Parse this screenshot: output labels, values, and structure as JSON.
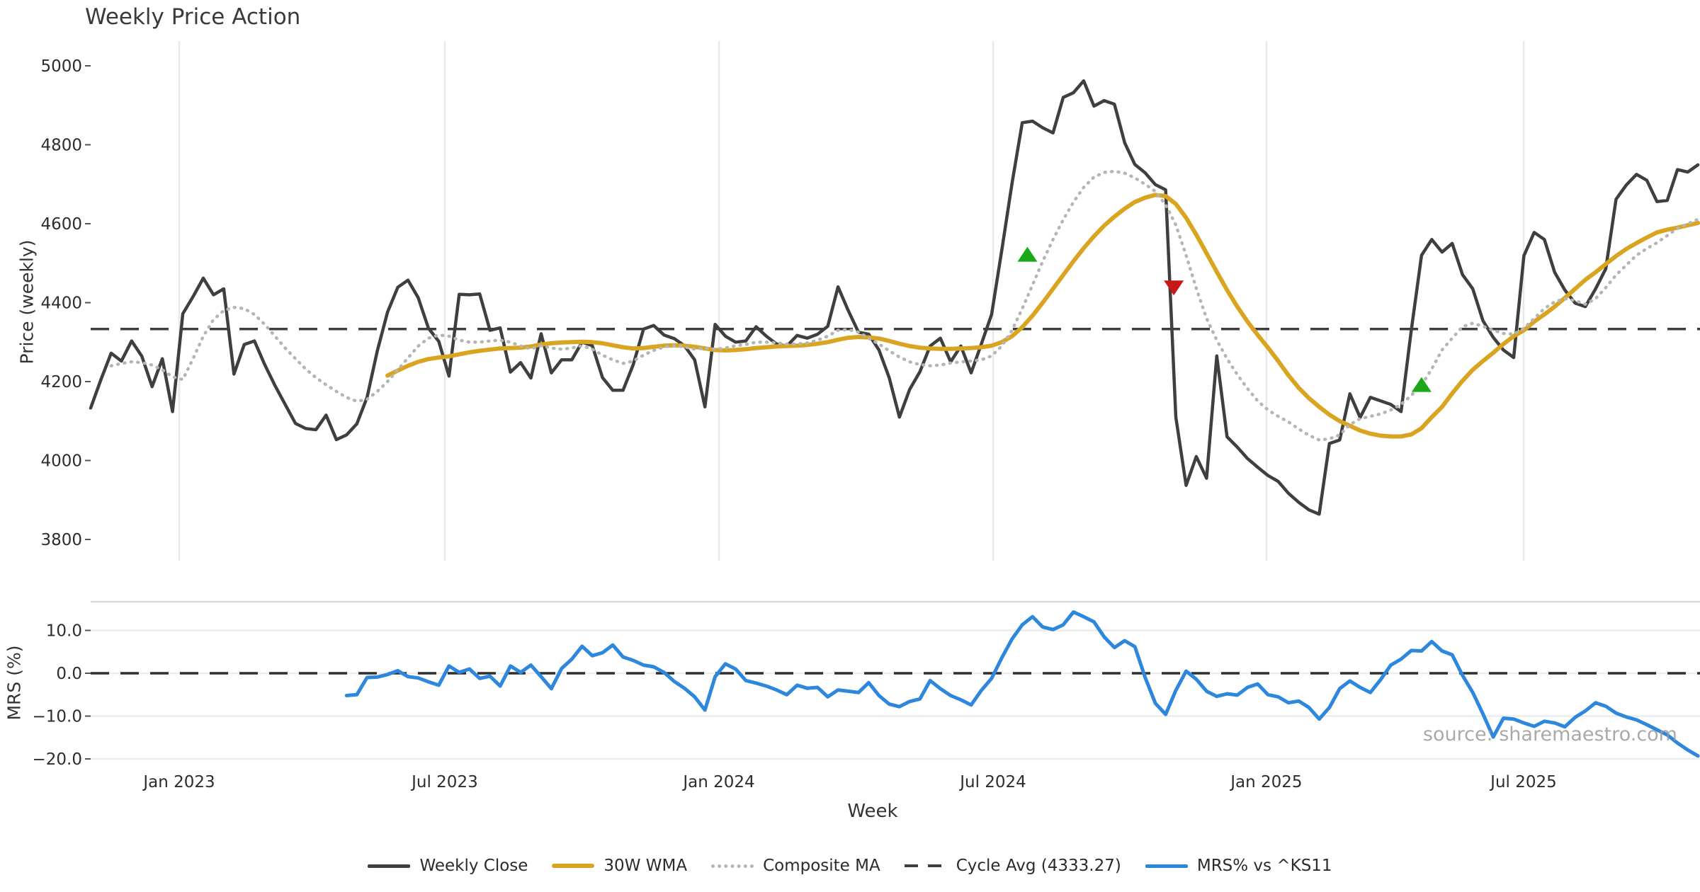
{
  "title": "Weekly Price Action",
  "axes": {
    "price_ylabel": "Price (weekly)",
    "mrs_ylabel": "MRS (%)",
    "xlabel": "Week"
  },
  "watermark": "source: sharemaestro.com",
  "legend": {
    "items": [
      {
        "label": "Weekly Close"
      },
      {
        "label": "30W WMA"
      },
      {
        "label": "Composite MA"
      },
      {
        "label": "Cycle Avg (4333.27)"
      },
      {
        "label": "MRS% vs ^KS11"
      }
    ]
  },
  "chart_data": {
    "type": "line",
    "title": "Weekly Price Action",
    "xlabel": "Week",
    "x_unit": "week_index",
    "x_ticks": [
      {
        "week": 8.65,
        "label": "Jan 2023"
      },
      {
        "week": 34.59,
        "label": "Jul 2023"
      },
      {
        "week": 61.37,
        "label": "Jan 2024"
      },
      {
        "week": 88.15,
        "label": "Jul 2024"
      },
      {
        "week": 114.85,
        "label": "Jan 2025"
      },
      {
        "week": 139.97,
        "label": "Jul 2025"
      }
    ],
    "panels": [
      {
        "name": "price",
        "ylabel": "Price (weekly)",
        "ylim": [
          3746,
          5063
        ],
        "grid": "vertical-only",
        "yticks": [
          {
            "v": 5000,
            "label": "5000"
          },
          {
            "v": 4800,
            "label": "4800"
          },
          {
            "v": 4600,
            "label": "4600"
          },
          {
            "v": 4400,
            "label": "4400"
          },
          {
            "v": 4200,
            "label": "4200"
          },
          {
            "v": 4000,
            "label": "4000"
          },
          {
            "v": 3800,
            "label": "3800"
          }
        ],
        "reference_lines": [
          {
            "name": "Cycle Avg",
            "value": 4333.27,
            "style": "dashed",
            "color": "#3d3d3d"
          }
        ]
      },
      {
        "name": "mrs",
        "ylabel": "MRS (%)",
        "ylim": [
          -21,
          16.7
        ],
        "grid": "horizontal-only",
        "yticks": [
          {
            "v": 10,
            "label": "10.0"
          },
          {
            "v": 0,
            "label": "0.0"
          },
          {
            "v": -10,
            "label": "−10.0"
          },
          {
            "v": -20,
            "label": "−20.0"
          }
        ],
        "reference_lines": [
          {
            "name": "Zero line",
            "value": 0,
            "style": "dashed",
            "color": "#2f2f2f"
          }
        ]
      }
    ],
    "series": [
      {
        "name": "Weekly Close",
        "panel": "price",
        "color": "#3f3f3f",
        "width": 4.5,
        "style": "solid",
        "start_week": 0,
        "values": [
          4133,
          4205,
          4272,
          4252,
          4303,
          4264,
          4187,
          4258,
          4124,
          4372,
          4415,
          4462,
          4420,
          4435,
          4219,
          4294,
          4303,
          4243,
          4190,
          4142,
          4094,
          4081,
          4078,
          4115,
          4053,
          4065,
          4093,
          4160,
          4278,
          4376,
          4439,
          4457,
          4412,
          4335,
          4302,
          4214,
          4421,
          4420,
          4422,
          4330,
          4336,
          4224,
          4248,
          4209,
          4321,
          4222,
          4255,
          4255,
          4300,
          4291,
          4210,
          4178,
          4178,
          4243,
          4333,
          4342,
          4318,
          4309,
          4291,
          4255,
          4136,
          4345,
          4315,
          4300,
          4303,
          4339,
          4315,
          4295,
          4290,
          4317,
          4310,
          4320,
          4340,
          4440,
          4380,
          4325,
          4320,
          4280,
          4210,
          4110,
          4180,
          4225,
          4290,
          4310,
          4250,
          4290,
          4222,
          4295,
          4370,
          4533,
          4703,
          4856,
          4860,
          4843,
          4830,
          4920,
          4932,
          4962,
          4898,
          4912,
          4903,
          4805,
          4750,
          4729,
          4699,
          4686,
          4110,
          3937,
          4010,
          3955,
          4265,
          4060,
          4034,
          4005,
          3983,
          3962,
          3947,
          3917,
          3894,
          3875,
          3864,
          4043,
          4052,
          4169,
          4109,
          4160,
          4151,
          4142,
          4124,
          4330,
          4520,
          4560,
          4528,
          4550,
          4471,
          4435,
          4354,
          4312,
          4280,
          4261,
          4519,
          4578,
          4560,
          4477,
          4432,
          4399,
          4390,
          4435,
          4486,
          4662,
          4698,
          4725,
          4710,
          4656,
          4659,
          4737,
          4731,
          4749
        ]
      },
      {
        "name": "30W WMA",
        "panel": "price",
        "color": "#d9a521",
        "width": 6,
        "style": "solid",
        "start_week": 29,
        "values": [
          4215,
          4228,
          4240,
          4250,
          4257,
          4261,
          4264,
          4269,
          4274,
          4278,
          4281,
          4284,
          4285,
          4286,
          4289,
          4294,
          4297,
          4299,
          4300,
          4301,
          4300,
          4297,
          4292,
          4287,
          4284,
          4285,
          4288,
          4291,
          4292,
          4291,
          4288,
          4284,
          4280,
          4279,
          4280,
          4282,
          4285,
          4287,
          4289,
          4290,
          4291,
          4293,
          4296,
          4300,
          4306,
          4311,
          4313,
          4312,
          4309,
          4303,
          4296,
          4290,
          4286,
          4284,
          4283,
          4283,
          4284,
          4285,
          4287,
          4291,
          4300,
          4315,
          4338,
          4367,
          4400,
          4435,
          4470,
          4505,
          4538,
          4568,
          4595,
          4618,
          4638,
          4655,
          4666,
          4673,
          4670,
          4650,
          4615,
          4572,
          4525,
          4478,
          4432,
          4390,
          4352,
          4318,
          4286,
          4252,
          4216,
          4184,
          4158,
          4136,
          4116,
          4100,
          4088,
          4076,
          4068,
          4063,
          4061,
          4061,
          4066,
          4082,
          4110,
          4136,
          4170,
          4202,
          4230,
          4252,
          4273,
          4295,
          4315,
          4330,
          4352,
          4370,
          4390,
          4412,
          4435,
          4458,
          4477,
          4498,
          4518,
          4536,
          4551,
          4565,
          4578,
          4585,
          4590,
          4596,
          4602
        ]
      },
      {
        "name": "Composite MA",
        "panel": "price",
        "color": "#b5b5b5",
        "width": 4.5,
        "style": "dotted",
        "start_week": 2,
        "values": [
          4240,
          4246,
          4250,
          4248,
          4242,
          4230,
          4212,
          4205,
          4258,
          4315,
          4357,
          4380,
          4388,
          4385,
          4370,
          4345,
          4315,
          4285,
          4258,
          4232,
          4210,
          4192,
          4175,
          4160,
          4150,
          4155,
          4175,
          4200,
          4230,
          4260,
          4290,
          4310,
          4318,
          4315,
          4305,
          4300,
          4300,
          4303,
          4305,
          4300,
          4290,
          4283,
          4291,
          4285,
          4282,
          4285,
          4291,
          4282,
          4267,
          4255,
          4246,
          4252,
          4267,
          4279,
          4288,
          4291,
          4288,
          4282,
          4285,
          4282,
          4285,
          4291,
          4294,
          4300,
          4300,
          4298,
          4295,
          4295,
          4298,
          4305,
          4315,
          4330,
          4332,
          4325,
          4310,
          4295,
          4278,
          4262,
          4250,
          4243,
          4240,
          4242,
          4247,
          4250,
          4252,
          4255,
          4265,
          4290,
          4330,
          4385,
          4445,
          4505,
          4560,
          4610,
          4655,
          4692,
          4718,
          4730,
          4733,
          4728,
          4716,
          4700,
          4682,
          4648,
          4597,
          4520,
          4436,
          4360,
          4305,
          4258,
          4218,
          4182,
          4151,
          4128,
          4112,
          4098,
          4080,
          4064,
          4052,
          4055,
          4065,
          4091,
          4106,
          4112,
          4118,
          4128,
          4142,
          4165,
          4191,
          4232,
          4280,
          4310,
          4339,
          4348,
          4340,
          4330,
          4322,
          4320,
          4335,
          4360,
          4385,
          4402,
          4410,
          4405,
          4396,
          4410,
          4438,
          4470,
          4495,
          4520,
          4537,
          4552,
          4570,
          4588,
          4600,
          4611
        ]
      },
      {
        "name": "MRS% vs ^KS11",
        "panel": "mrs",
        "color": "#2d87dd",
        "width": 5,
        "style": "solid",
        "start_week": 25,
        "values": [
          -5.2,
          -5.0,
          -1.0,
          -0.9,
          -0.3,
          0.6,
          -0.8,
          -1.1,
          -2.0,
          -2.8,
          1.7,
          0.2,
          1.0,
          -1.2,
          -0.7,
          -3.0,
          1.7,
          0.2,
          1.9,
          -0.8,
          -3.6,
          1.1,
          3.3,
          6.3,
          4.1,
          4.8,
          6.6,
          3.8,
          3.0,
          1.9,
          1.5,
          0.2,
          -1.9,
          -3.5,
          -5.5,
          -8.6,
          -0.8,
          2.2,
          1.0,
          -1.7,
          -2.3,
          -3.0,
          -3.9,
          -5.0,
          -2.8,
          -3.5,
          -3.3,
          -5.5,
          -3.9,
          -4.2,
          -4.5,
          -2.2,
          -5.2,
          -7.2,
          -7.8,
          -6.6,
          -6.0,
          -1.7,
          -3.6,
          -5.2,
          -6.2,
          -7.4,
          -4.0,
          -1.2,
          3.6,
          8.0,
          11.3,
          13.2,
          10.8,
          10.2,
          11.3,
          14.3,
          13.2,
          12.0,
          8.5,
          6.0,
          7.6,
          6.2,
          -1.0,
          -7.0,
          -9.6,
          -4.0,
          0.5,
          -1.4,
          -4.2,
          -5.4,
          -4.8,
          -5.1,
          -3.3,
          -2.5,
          -5.0,
          -5.5,
          -6.9,
          -6.5,
          -8.0,
          -10.7,
          -8.0,
          -3.6,
          -1.8,
          -3.3,
          -4.5,
          -1.5,
          1.9,
          3.3,
          5.3,
          5.2,
          7.4,
          5.2,
          4.3,
          -0.5,
          -4.5,
          -9.5,
          -14.9,
          -10.5,
          -10.7,
          -11.6,
          -12.4,
          -11.2,
          -11.6,
          -12.5,
          -10.3,
          -8.8,
          -6.9,
          -7.7,
          -9.3,
          -10.2,
          -10.9,
          -12.0,
          -13.2,
          -14.4,
          -16.3,
          -17.9,
          -19.3
        ]
      }
    ],
    "markers": [
      {
        "shape": "triangle-up",
        "color": "#18a818",
        "panel": "price",
        "week": 91.5,
        "value": 4520
      },
      {
        "shape": "triangle-down",
        "color": "#c81919",
        "panel": "price",
        "week": 105.8,
        "value": 4440
      },
      {
        "shape": "triangle-up",
        "color": "#18a818",
        "panel": "price",
        "week": 130.0,
        "value": 4190
      }
    ]
  }
}
